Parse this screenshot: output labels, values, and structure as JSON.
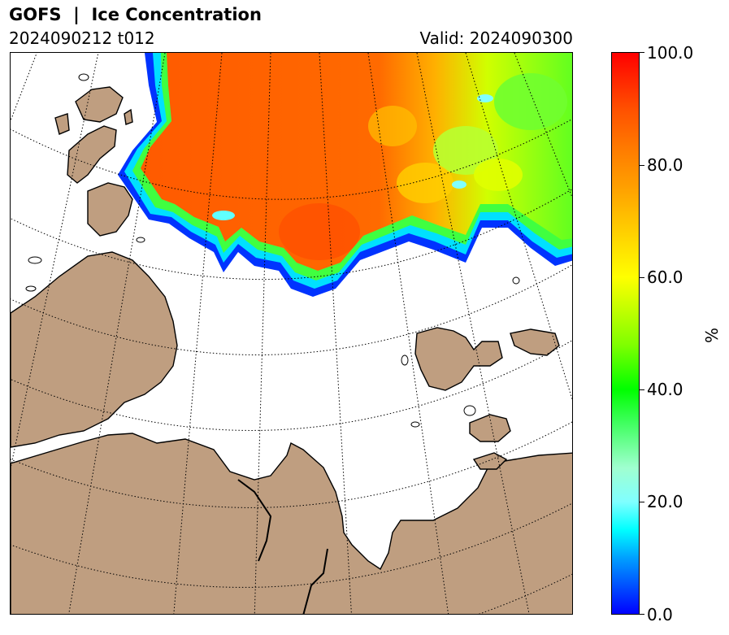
{
  "header": {
    "title": "GOFS  |  Ice Concentration",
    "run": "2024090212 t012",
    "valid": "Valid: 2024090300"
  },
  "colorbar": {
    "unit": "%",
    "range": [
      0.0,
      100.0
    ],
    "ticks": [
      "100.0",
      "80.0",
      "60.0",
      "40.0",
      "20.0",
      "0.0"
    ],
    "colormap": "blue-cyan-green-yellow-red",
    "colors": {
      "low": "#0000ff",
      "mid": "#ffff00",
      "high": "#ff0000"
    }
  },
  "map": {
    "land_color": "#bf9e80",
    "ocean_color": "#ffffff",
    "graticule": "dotted",
    "coastline_color": "#000000"
  }
}
